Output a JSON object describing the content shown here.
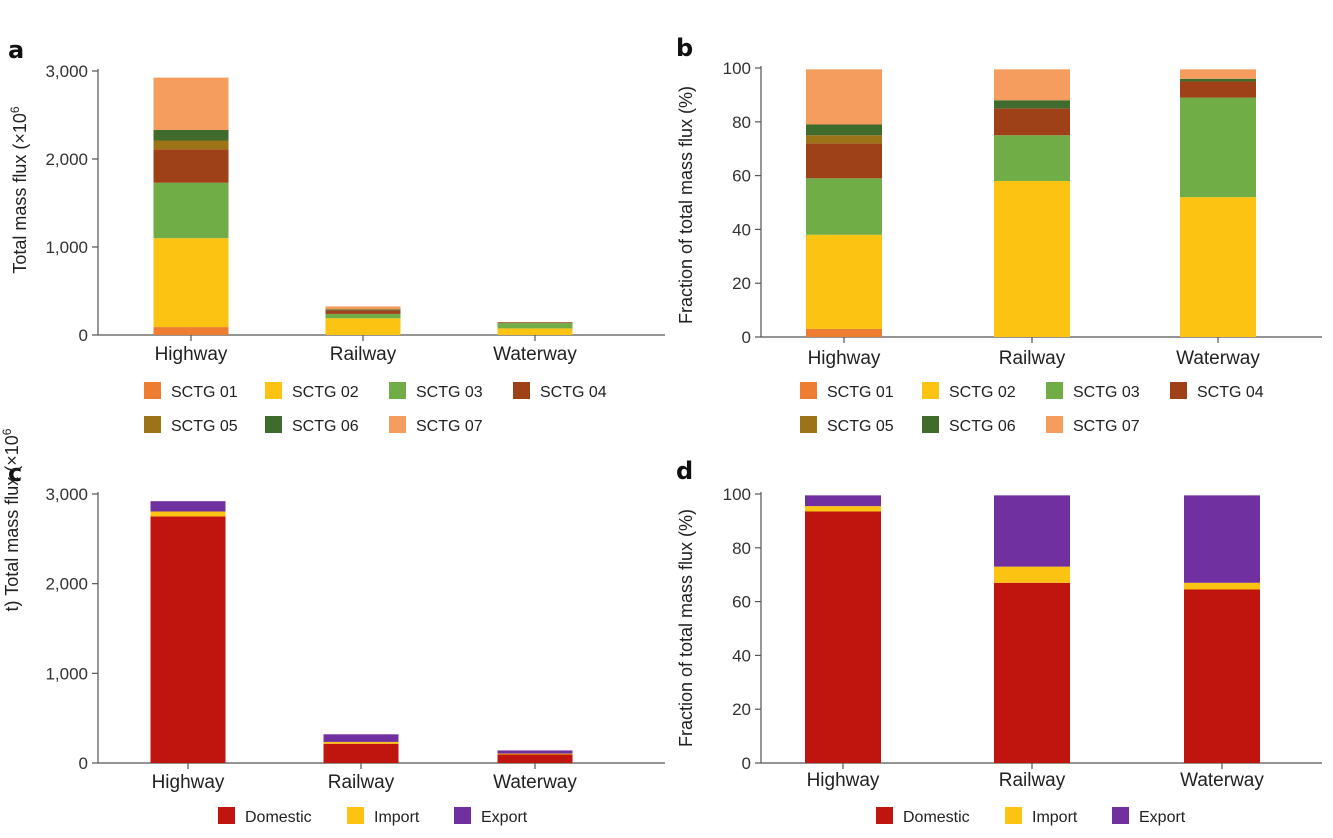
{
  "chart_data": [
    {
      "panel": "a",
      "type": "bar",
      "stacked": true,
      "categories": [
        "Highway",
        "Railway",
        "Waterway"
      ],
      "ylabel": "Total mass flux (×10",
      "ylabel_sup": "6",
      "ylim": [
        0,
        3000
      ],
      "yticks": [
        0,
        1000,
        2000,
        3000
      ],
      "ytick_labels": [
        "0",
        "1,000",
        "2,000",
        "3,000"
      ],
      "legend_position": "bottom",
      "series": [
        {
          "name": "SCTG 01",
          "color": "#ee7d31",
          "values": [
            90,
            0,
            0
          ]
        },
        {
          "name": "SCTG 02",
          "color": "#fdc313",
          "values": [
            1010,
            190,
            75
          ]
        },
        {
          "name": "SCTG 03",
          "color": "#70ad47",
          "values": [
            630,
            50,
            60
          ]
        },
        {
          "name": "SCTG 04",
          "color": "#9e4119",
          "values": [
            380,
            40,
            10
          ]
        },
        {
          "name": "SCTG 05",
          "color": "#9c7317",
          "values": [
            100,
            0,
            0
          ]
        },
        {
          "name": "SCTG 06",
          "color": "#3f6b2c",
          "values": [
            120,
            10,
            0
          ]
        },
        {
          "name": "SCTG 07",
          "color": "#f59d5e",
          "values": [
            595,
            35,
            0
          ]
        }
      ]
    },
    {
      "panel": "b",
      "type": "bar",
      "stacked": true,
      "categories": [
        "Highway",
        "Railway",
        "Waterway"
      ],
      "ylabel": "Fraction of total mass flux (%)",
      "ylim": [
        0,
        100
      ],
      "yticks": [
        0,
        20,
        40,
        60,
        80,
        100
      ],
      "ytick_labels": [
        "0",
        "20",
        "40",
        "60",
        "80",
        "100"
      ],
      "legend_position": "bottom",
      "series": [
        {
          "name": "SCTG 01",
          "color": "#ee7d31",
          "values": [
            3,
            0,
            0
          ]
        },
        {
          "name": "SCTG 02",
          "color": "#fdc313",
          "values": [
            35,
            58,
            52
          ]
        },
        {
          "name": "SCTG 03",
          "color": "#70ad47",
          "values": [
            21,
            17,
            37
          ]
        },
        {
          "name": "SCTG 04",
          "color": "#9e4119",
          "values": [
            13,
            10,
            6
          ]
        },
        {
          "name": "SCTG 05",
          "color": "#9c7317",
          "values": [
            3,
            0,
            0
          ]
        },
        {
          "name": "SCTG 06",
          "color": "#3f6b2c",
          "values": [
            4,
            3,
            1
          ]
        },
        {
          "name": "SCTG 07",
          "color": "#f59d5e",
          "values": [
            20.5,
            11.5,
            3.5
          ]
        }
      ]
    },
    {
      "panel": "c",
      "type": "bar",
      "stacked": true,
      "categories": [
        "Highway",
        "Railway",
        "Waterway"
      ],
      "ylabel": "t) Total mass flux (×10",
      "ylabel_sup": "6",
      "ylim": [
        0,
        3000
      ],
      "yticks": [
        0,
        1000,
        2000,
        3000
      ],
      "ytick_labels": [
        "0",
        "1,000",
        "2,000",
        "3,000"
      ],
      "legend_position": "bottom",
      "series": [
        {
          "name": "Domestic",
          "color": "#c0150f",
          "values": [
            2750,
            215,
            95
          ]
        },
        {
          "name": "Import",
          "color": "#fdc313",
          "values": [
            55,
            20,
            10
          ]
        },
        {
          "name": "Export",
          "color": "#7030a0",
          "values": [
            115,
            85,
            35
          ]
        }
      ]
    },
    {
      "panel": "d",
      "type": "bar",
      "stacked": true,
      "categories": [
        "Highway",
        "Railway",
        "Waterway"
      ],
      "ylabel": "Fraction of total mass flux (%)",
      "ylim": [
        0,
        100
      ],
      "yticks": [
        0,
        20,
        40,
        60,
        80,
        100
      ],
      "ytick_labels": [
        "0",
        "20",
        "40",
        "60",
        "80",
        "100"
      ],
      "legend_position": "bottom",
      "series": [
        {
          "name": "Domestic",
          "color": "#c0150f",
          "values": [
            93.5,
            67,
            64.5
          ]
        },
        {
          "name": "Import",
          "color": "#fdc313",
          "values": [
            2,
            6,
            2.5
          ]
        },
        {
          "name": "Export",
          "color": "#7030a0",
          "values": [
            4,
            26.5,
            32.5
          ]
        }
      ]
    }
  ]
}
